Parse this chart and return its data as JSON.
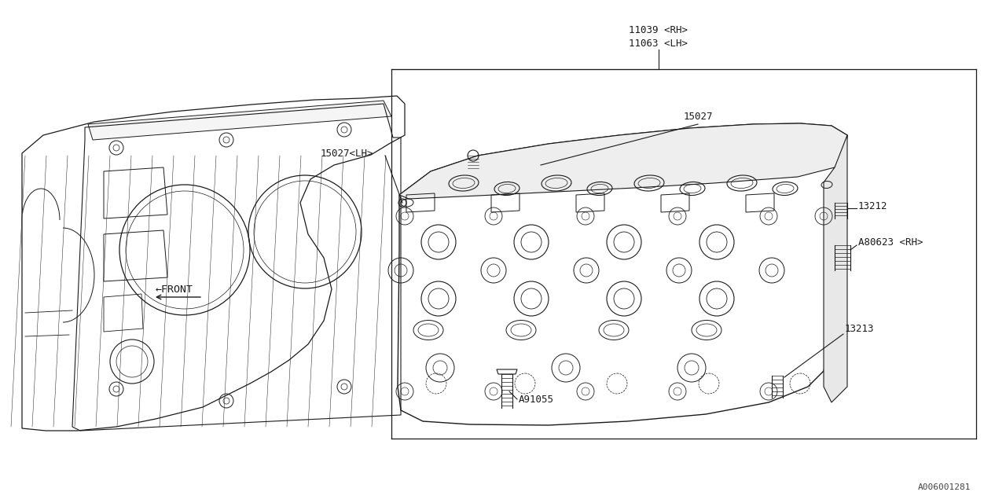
{
  "bg_color": "#ffffff",
  "line_color": "#1a1a1a",
  "part_labels": {
    "11039_rh": "11039 <RH>",
    "11063_lh": "11063 <LH>",
    "15027_lh": "15027<LH>",
    "15027": "15027",
    "13212": "13212",
    "a80623_rh": "A80623 <RH>",
    "13213": "13213",
    "a91055": "A91055"
  },
  "front_label": "←FRONT",
  "watermark": "A006001281",
  "font_size_labels": 9,
  "font_size_watermark": 8
}
